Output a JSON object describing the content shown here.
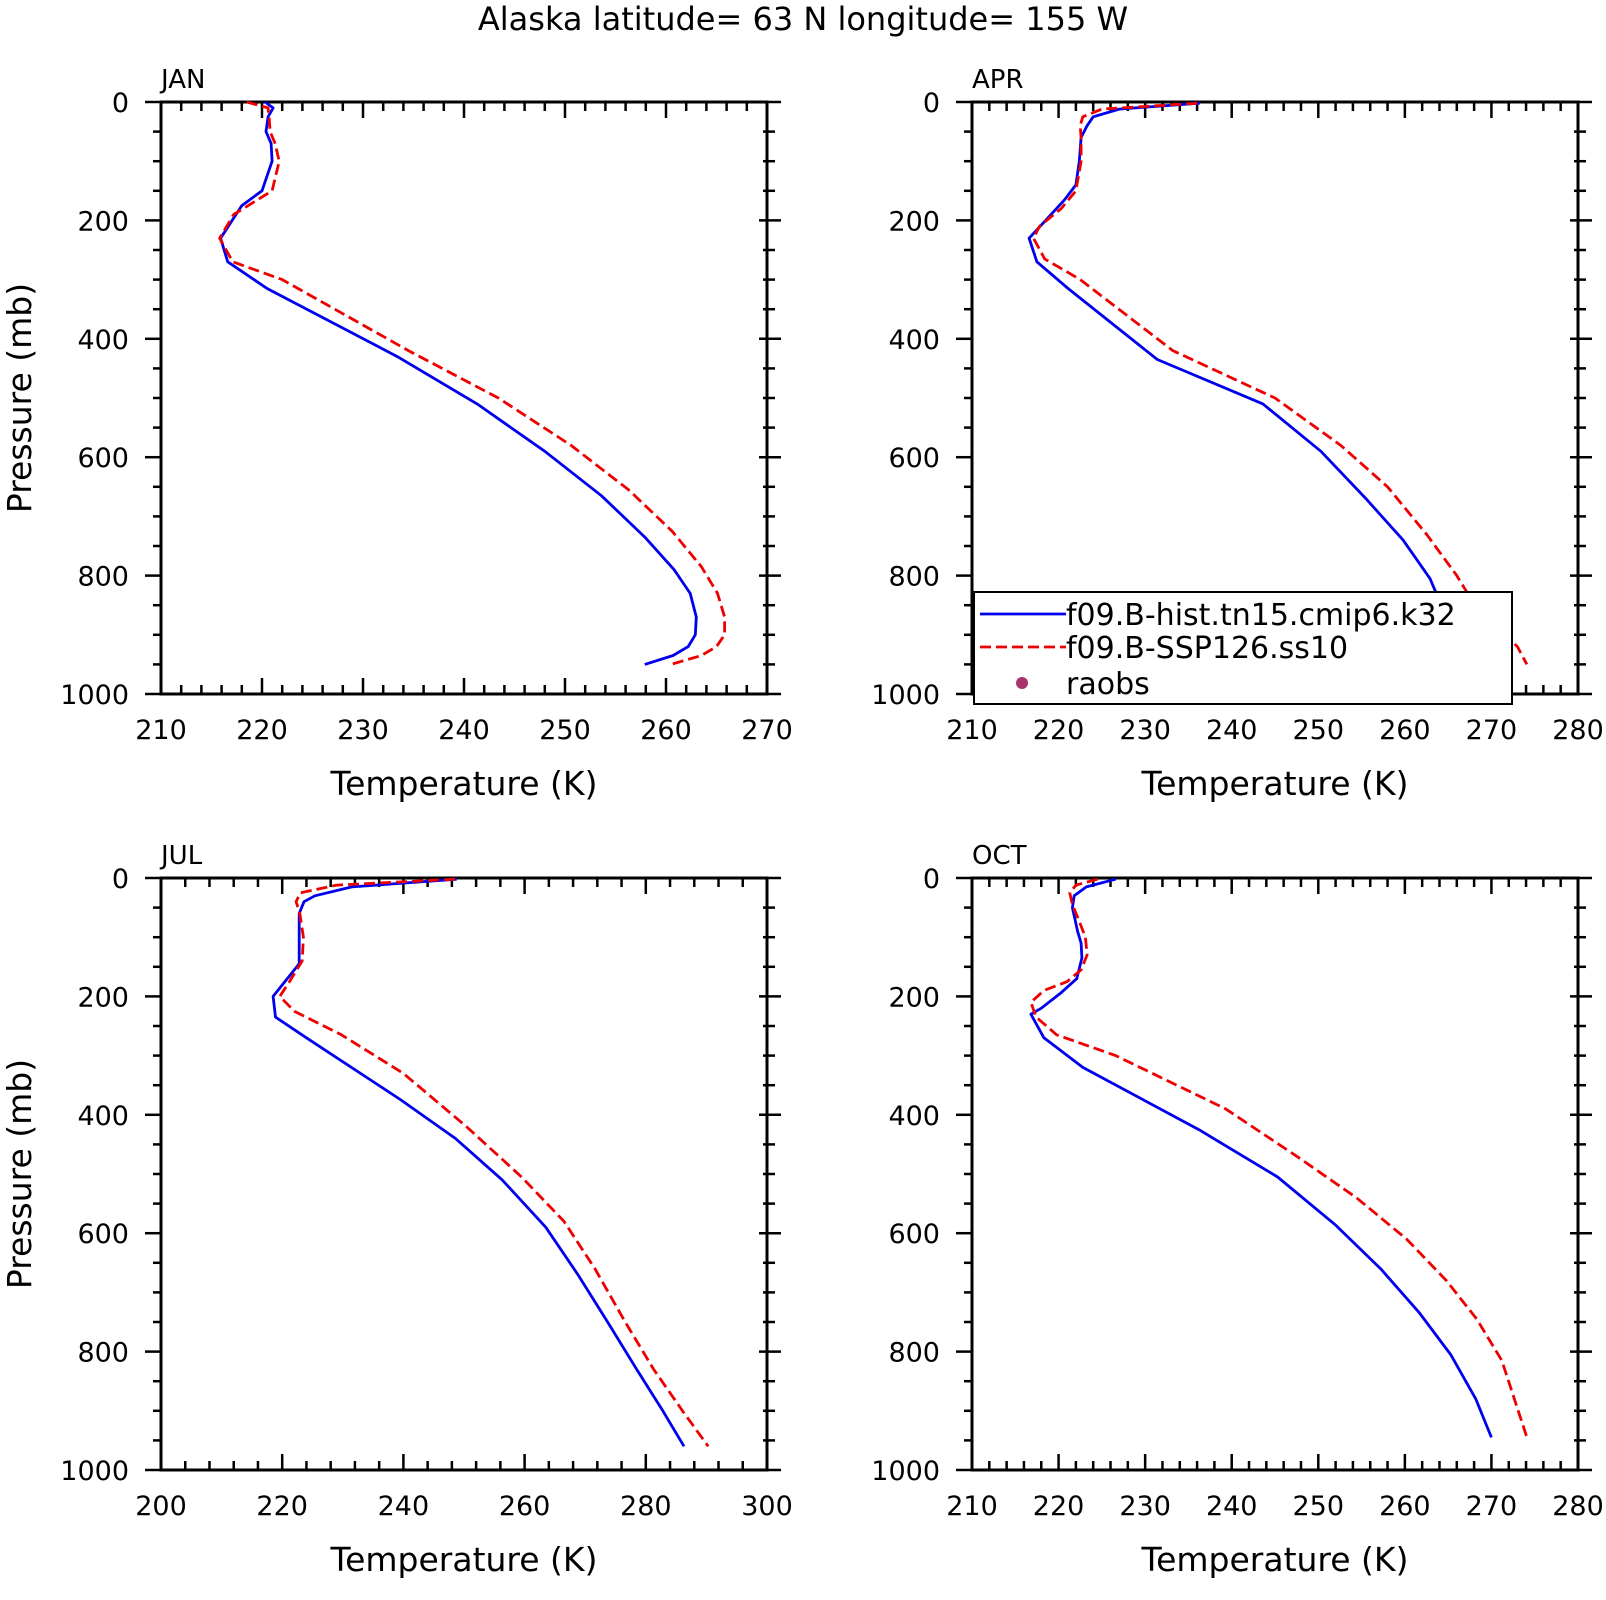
{
  "title": "Alaska   latitude= 63 N longitude= 155 W",
  "colors": {
    "hist": "#0000ee",
    "ssp": "#ee0000",
    "raobs": "#a8336a"
  },
  "legend": {
    "entries": [
      {
        "label": "f09.B-hist.tn15.cmip6.k32",
        "style": "solid-blue"
      },
      {
        "label": "f09.B-SSP126.ss10",
        "style": "dashed-red"
      },
      {
        "label": "raobs",
        "style": "dot"
      }
    ]
  },
  "chart_data": [
    {
      "type": "line",
      "panel": "JAN",
      "xlabel": "Temperature (K)",
      "ylabel": "Pressure (mb)",
      "xlim": [
        210,
        270
      ],
      "ylim": [
        1000,
        0
      ],
      "xticks": [
        "210",
        "220",
        "230",
        "240",
        "250",
        "260",
        "270"
      ],
      "yticks": [
        "0",
        "200",
        "400",
        "600",
        "800",
        "1000"
      ],
      "series": [
        {
          "name": "f09.B-hist.tn15.cmip6.k32",
          "x": [
            220.3,
            221.1,
            220.6,
            220.4,
            220.9,
            221.0,
            220.0,
            218.0,
            215.9,
            216.6,
            220.5,
            233.4,
            241.3,
            248.0,
            253.6,
            257.9,
            260.8,
            262.4,
            263.0,
            262.9,
            262.2,
            260.7,
            257.9
          ],
          "y": [
            0,
            10,
            25,
            50,
            70,
            100,
            150,
            175,
            230,
            270,
            315,
            430,
            510,
            590,
            665,
            735,
            790,
            830,
            870,
            900,
            920,
            935,
            950
          ]
        },
        {
          "name": "f09.B-SSP126.ss10",
          "x": [
            218.5,
            220.6,
            220.7,
            220.8,
            221.3,
            221.7,
            221.0,
            217.2,
            215.8,
            217.1,
            222.0,
            234.5,
            243.4,
            250.6,
            256.3,
            260.6,
            263.5,
            265.1,
            265.8,
            265.8,
            265.0,
            263.5,
            260.5
          ],
          "y": [
            0,
            10,
            25,
            50,
            70,
            100,
            150,
            190,
            230,
            270,
            300,
            420,
            500,
            580,
            655,
            725,
            785,
            830,
            870,
            900,
            920,
            935,
            950
          ]
        }
      ]
    },
    {
      "type": "line",
      "panel": "APR",
      "xlabel": "Temperature (K)",
      "ylabel": "",
      "xlim": [
        210,
        280
      ],
      "ylim": [
        1000,
        0
      ],
      "xticks": [
        "210",
        "220",
        "230",
        "240",
        "250",
        "260",
        "270",
        "280"
      ],
      "yticks": [
        "0",
        "200",
        "400",
        "600",
        "800",
        "1000"
      ],
      "series": [
        {
          "name": "f09.B-hist.tn15.cmip6.k32",
          "x": [
            236.3,
            227.0,
            224.0,
            223.3,
            222.6,
            222.4,
            222.0,
            220.7,
            218.5,
            216.6,
            217.5,
            221.1,
            231.4,
            243.6,
            250.3,
            255.5,
            259.8,
            262.9,
            264.5,
            266.4,
            268.8,
            270.1
          ],
          "y": [
            2,
            12,
            25,
            40,
            60,
            100,
            140,
            165,
            200,
            230,
            270,
            315,
            435,
            510,
            590,
            670,
            740,
            805,
            860,
            890,
            930,
            955
          ]
        },
        {
          "name": "f09.B-SSP126.ss10",
          "x": [
            236.0,
            225.0,
            222.8,
            222.5,
            222.6,
            222.6,
            222.0,
            220.3,
            217.8,
            217.1,
            218.4,
            222.5,
            233.2,
            245.0,
            252.6,
            258.0,
            262.5,
            266.0,
            268.5,
            270.9,
            273.0,
            274.1
          ],
          "y": [
            2,
            12,
            25,
            40,
            60,
            100,
            150,
            180,
            210,
            230,
            265,
            300,
            420,
            500,
            580,
            650,
            730,
            800,
            860,
            890,
            920,
            950
          ]
        }
      ]
    },
    {
      "type": "line",
      "panel": "JUL",
      "xlabel": "Temperature (K)",
      "ylabel": "Pressure (mb)",
      "xlim": [
        200,
        300
      ],
      "ylim": [
        1000,
        0
      ],
      "xticks": [
        "200",
        "220",
        "240",
        "260",
        "280",
        "300"
      ],
      "yticks": [
        "0",
        "200",
        "400",
        "600",
        "800",
        "1000"
      ],
      "series": [
        {
          "name": "f09.B-hist.tn15.cmip6.k32",
          "x": [
            248.8,
            231.5,
            225.4,
            223.6,
            222.8,
            222.8,
            222.8,
            218.5,
            218.9,
            224.0,
            239.6,
            248.6,
            256.3,
            263.5,
            268.8,
            273.7,
            278.5,
            282.8,
            286.3
          ],
          "y": [
            2,
            15,
            30,
            40,
            60,
            100,
            145,
            200,
            235,
            270,
            375,
            440,
            510,
            590,
            670,
            750,
            830,
            900,
            960
          ]
        },
        {
          "name": "f09.B-SSP126.ss10",
          "x": [
            248.5,
            229.0,
            223.0,
            222.3,
            222.9,
            223.5,
            223.3,
            221.2,
            219.6,
            222.0,
            229.8,
            240.0,
            250.4,
            259.5,
            266.5,
            271.6,
            276.6,
            281.3,
            286.4,
            290.3
          ],
          "y": [
            2,
            12,
            25,
            40,
            60,
            100,
            140,
            175,
            200,
            225,
            265,
            330,
            420,
            505,
            580,
            660,
            750,
            830,
            905,
            960
          ]
        }
      ]
    },
    {
      "type": "line",
      "panel": "OCT",
      "xlabel": "Temperature (K)",
      "ylabel": "",
      "xlim": [
        210,
        280
      ],
      "ylim": [
        1000,
        0
      ],
      "xticks": [
        "210",
        "220",
        "230",
        "240",
        "250",
        "260",
        "270",
        "280"
      ],
      "yticks": [
        "0",
        "200",
        "400",
        "600",
        "800",
        "1000"
      ],
      "series": [
        {
          "name": "f09.B-hist.tn15.cmip6.k32",
          "x": [
            226.6,
            223.2,
            221.8,
            221.6,
            221.9,
            222.2,
            222.6,
            222.7,
            222.1,
            220.2,
            218.0,
            216.8,
            218.3,
            222.8,
            236.2,
            245.3,
            251.9,
            257.2,
            261.7,
            265.3,
            268.2,
            270.0
          ],
          "y": [
            2,
            15,
            30,
            50,
            70,
            90,
            110,
            135,
            170,
            195,
            220,
            230,
            270,
            320,
            425,
            505,
            585,
            660,
            735,
            805,
            880,
            945
          ]
        },
        {
          "name": "f09.B-SSP126.ss10",
          "x": [
            224.5,
            222.0,
            221.3,
            221.6,
            222.3,
            223.1,
            223.3,
            222.6,
            221.0,
            218.3,
            216.8,
            217.4,
            219.8,
            226.6,
            239.3,
            247.5,
            254.4,
            260.2,
            264.8,
            268.3,
            271.2,
            274.1
          ],
          "y": [
            2,
            12,
            25,
            45,
            70,
            100,
            130,
            155,
            175,
            190,
            210,
            235,
            265,
            300,
            390,
            470,
            540,
            610,
            680,
            745,
            815,
            945
          ]
        }
      ]
    }
  ]
}
